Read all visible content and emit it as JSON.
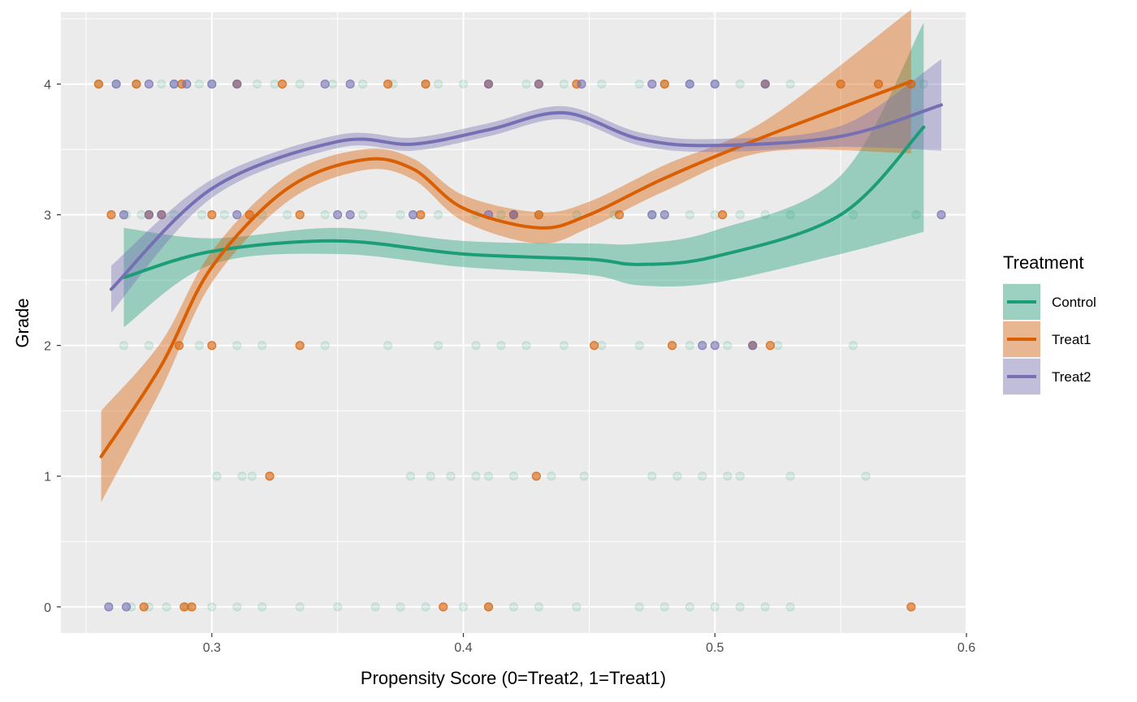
{
  "chart_data": {
    "type": "scatter",
    "title": "",
    "xlabel": "Propensity Score (0=Treat2, 1=Treat1)",
    "ylabel": "Grade",
    "xlim": [
      0.24,
      0.6
    ],
    "ylim": [
      -0.2,
      4.55
    ],
    "xticks": [
      0.3,
      0.4,
      0.5,
      0.6
    ],
    "xtick_labels": [
      "0.3",
      "0.4",
      "0.5",
      "0.6"
    ],
    "yticks": [
      0,
      1,
      2,
      3,
      4
    ],
    "ytick_labels": [
      "0",
      "1",
      "2",
      "3",
      "4"
    ],
    "grid": true,
    "legend": {
      "title": "Treatment",
      "placement": "right",
      "entries": [
        "Control",
        "Treat1",
        "Treat2"
      ]
    },
    "colors": {
      "Control": "#1b9e77",
      "Treat1": "#d95f02",
      "Treat2": "#7570b3",
      "panel": "#ebebeb",
      "grid": "#ffffff"
    },
    "series": [
      {
        "name": "Control",
        "points": [
          [
            0.255,
            4
          ],
          [
            0.262,
            4
          ],
          [
            0.27,
            4
          ],
          [
            0.28,
            4
          ],
          [
            0.285,
            4
          ],
          [
            0.295,
            4
          ],
          [
            0.3,
            4
          ],
          [
            0.31,
            4
          ],
          [
            0.318,
            4
          ],
          [
            0.325,
            4
          ],
          [
            0.335,
            4
          ],
          [
            0.348,
            4
          ],
          [
            0.36,
            4
          ],
          [
            0.372,
            4
          ],
          [
            0.385,
            4
          ],
          [
            0.39,
            4
          ],
          [
            0.4,
            4
          ],
          [
            0.41,
            4
          ],
          [
            0.425,
            4
          ],
          [
            0.44,
            4
          ],
          [
            0.455,
            4
          ],
          [
            0.47,
            4
          ],
          [
            0.48,
            4
          ],
          [
            0.49,
            4
          ],
          [
            0.5,
            4
          ],
          [
            0.51,
            4
          ],
          [
            0.52,
            4
          ],
          [
            0.53,
            4
          ],
          [
            0.583,
            4
          ],
          [
            0.266,
            3
          ],
          [
            0.272,
            3
          ],
          [
            0.285,
            3
          ],
          [
            0.296,
            3
          ],
          [
            0.305,
            3
          ],
          [
            0.32,
            3
          ],
          [
            0.33,
            3
          ],
          [
            0.345,
            3
          ],
          [
            0.36,
            3
          ],
          [
            0.375,
            3
          ],
          [
            0.39,
            3
          ],
          [
            0.405,
            3
          ],
          [
            0.415,
            3
          ],
          [
            0.43,
            3
          ],
          [
            0.445,
            3
          ],
          [
            0.46,
            3
          ],
          [
            0.475,
            3
          ],
          [
            0.49,
            3
          ],
          [
            0.5,
            3
          ],
          [
            0.51,
            3
          ],
          [
            0.52,
            3
          ],
          [
            0.53,
            3
          ],
          [
            0.555,
            3
          ],
          [
            0.58,
            3
          ],
          [
            0.265,
            2
          ],
          [
            0.275,
            2
          ],
          [
            0.295,
            2
          ],
          [
            0.31,
            2
          ],
          [
            0.32,
            2
          ],
          [
            0.345,
            2
          ],
          [
            0.37,
            2
          ],
          [
            0.39,
            2
          ],
          [
            0.405,
            2
          ],
          [
            0.415,
            2
          ],
          [
            0.425,
            2
          ],
          [
            0.44,
            2
          ],
          [
            0.455,
            2
          ],
          [
            0.47,
            2
          ],
          [
            0.49,
            2
          ],
          [
            0.505,
            2
          ],
          [
            0.515,
            2
          ],
          [
            0.525,
            2
          ],
          [
            0.555,
            2
          ],
          [
            0.302,
            1
          ],
          [
            0.312,
            1
          ],
          [
            0.316,
            1
          ],
          [
            0.379,
            1
          ],
          [
            0.387,
            1
          ],
          [
            0.395,
            1
          ],
          [
            0.405,
            1
          ],
          [
            0.41,
            1
          ],
          [
            0.42,
            1
          ],
          [
            0.435,
            1
          ],
          [
            0.448,
            1
          ],
          [
            0.475,
            1
          ],
          [
            0.485,
            1
          ],
          [
            0.495,
            1
          ],
          [
            0.505,
            1
          ],
          [
            0.51,
            1
          ],
          [
            0.53,
            1
          ],
          [
            0.56,
            1
          ],
          [
            0.268,
            0
          ],
          [
            0.275,
            0
          ],
          [
            0.282,
            0
          ],
          [
            0.29,
            0
          ],
          [
            0.3,
            0
          ],
          [
            0.31,
            0
          ],
          [
            0.32,
            0
          ],
          [
            0.335,
            0
          ],
          [
            0.35,
            0
          ],
          [
            0.365,
            0
          ],
          [
            0.375,
            0
          ],
          [
            0.385,
            0
          ],
          [
            0.4,
            0
          ],
          [
            0.41,
            0
          ],
          [
            0.42,
            0
          ],
          [
            0.43,
            0
          ],
          [
            0.445,
            0
          ],
          [
            0.47,
            0
          ],
          [
            0.48,
            0
          ],
          [
            0.49,
            0
          ],
          [
            0.5,
            0
          ],
          [
            0.51,
            0
          ],
          [
            0.52,
            0
          ],
          [
            0.53,
            0
          ]
        ],
        "smooth": [
          [
            0.265,
            2.52
          ],
          [
            0.3,
            2.72
          ],
          [
            0.35,
            2.8
          ],
          [
            0.4,
            2.7
          ],
          [
            0.45,
            2.66
          ],
          [
            0.47,
            2.62
          ],
          [
            0.5,
            2.68
          ],
          [
            0.55,
            3.0
          ],
          [
            0.583,
            3.67
          ]
        ],
        "ribbon_halfwidth": [
          0.38,
          0.1,
          0.1,
          0.1,
          0.12,
          0.16,
          0.2,
          0.3,
          0.8
        ]
      },
      {
        "name": "Treat1",
        "points": [
          [
            0.255,
            4
          ],
          [
            0.27,
            4
          ],
          [
            0.288,
            4
          ],
          [
            0.31,
            4
          ],
          [
            0.328,
            4
          ],
          [
            0.37,
            4
          ],
          [
            0.385,
            4
          ],
          [
            0.41,
            4
          ],
          [
            0.43,
            4
          ],
          [
            0.445,
            4
          ],
          [
            0.48,
            4
          ],
          [
            0.52,
            4
          ],
          [
            0.55,
            4
          ],
          [
            0.565,
            4
          ],
          [
            0.578,
            4
          ],
          [
            0.26,
            3
          ],
          [
            0.275,
            3
          ],
          [
            0.28,
            3
          ],
          [
            0.3,
            3
          ],
          [
            0.315,
            3
          ],
          [
            0.335,
            3
          ],
          [
            0.383,
            3
          ],
          [
            0.42,
            3
          ],
          [
            0.43,
            3
          ],
          [
            0.462,
            3
          ],
          [
            0.503,
            3
          ],
          [
            0.287,
            2
          ],
          [
            0.3,
            2
          ],
          [
            0.335,
            2
          ],
          [
            0.452,
            2
          ],
          [
            0.483,
            2
          ],
          [
            0.515,
            2
          ],
          [
            0.522,
            2
          ],
          [
            0.323,
            1
          ],
          [
            0.429,
            1
          ],
          [
            0.273,
            0
          ],
          [
            0.289,
            0
          ],
          [
            0.292,
            0
          ],
          [
            0.392,
            0
          ],
          [
            0.41,
            0
          ],
          [
            0.578,
            0
          ]
        ],
        "smooth": [
          [
            0.256,
            1.15
          ],
          [
            0.28,
            1.85
          ],
          [
            0.3,
            2.6
          ],
          [
            0.33,
            3.2
          ],
          [
            0.36,
            3.42
          ],
          [
            0.38,
            3.35
          ],
          [
            0.4,
            3.05
          ],
          [
            0.43,
            2.9
          ],
          [
            0.45,
            3.0
          ],
          [
            0.48,
            3.28
          ],
          [
            0.52,
            3.6
          ],
          [
            0.578,
            4.02
          ]
        ],
        "ribbon_halfwidth": [
          0.35,
          0.18,
          0.12,
          0.1,
          0.08,
          0.08,
          0.1,
          0.12,
          0.1,
          0.1,
          0.12,
          0.55
        ]
      },
      {
        "name": "Treat2",
        "points": [
          [
            0.262,
            4
          ],
          [
            0.275,
            4
          ],
          [
            0.285,
            4
          ],
          [
            0.29,
            4
          ],
          [
            0.3,
            4
          ],
          [
            0.31,
            4
          ],
          [
            0.345,
            4
          ],
          [
            0.355,
            4
          ],
          [
            0.41,
            4
          ],
          [
            0.43,
            4
          ],
          [
            0.447,
            4
          ],
          [
            0.475,
            4
          ],
          [
            0.49,
            4
          ],
          [
            0.5,
            4
          ],
          [
            0.52,
            4
          ],
          [
            0.265,
            3
          ],
          [
            0.275,
            3
          ],
          [
            0.28,
            3
          ],
          [
            0.31,
            3
          ],
          [
            0.35,
            3
          ],
          [
            0.355,
            3
          ],
          [
            0.38,
            3
          ],
          [
            0.41,
            3
          ],
          [
            0.42,
            3
          ],
          [
            0.475,
            3
          ],
          [
            0.48,
            3
          ],
          [
            0.59,
            3
          ],
          [
            0.495,
            2
          ],
          [
            0.5,
            2
          ],
          [
            0.515,
            2
          ],
          [
            0.259,
            0
          ],
          [
            0.266,
            0
          ]
        ],
        "smooth": [
          [
            0.26,
            2.43
          ],
          [
            0.3,
            3.2
          ],
          [
            0.35,
            3.56
          ],
          [
            0.38,
            3.54
          ],
          [
            0.41,
            3.65
          ],
          [
            0.44,
            3.78
          ],
          [
            0.47,
            3.58
          ],
          [
            0.5,
            3.53
          ],
          [
            0.55,
            3.6
          ],
          [
            0.59,
            3.84
          ]
        ],
        "ribbon_halfwidth": [
          0.18,
          0.07,
          0.05,
          0.05,
          0.05,
          0.05,
          0.05,
          0.05,
          0.08,
          0.35
        ]
      }
    ]
  }
}
